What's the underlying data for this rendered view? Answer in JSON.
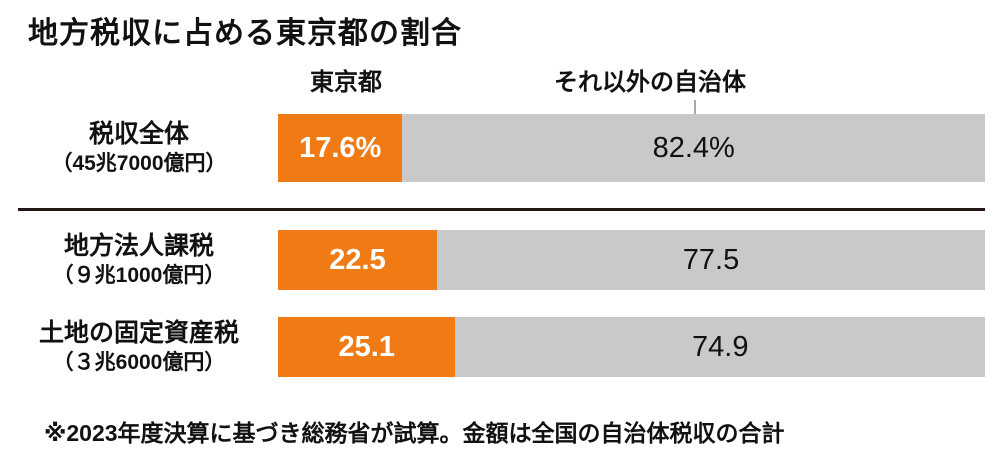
{
  "title": "地方税収に占める東京都の割合",
  "legend": {
    "tokyo": "東京都",
    "other": "それ以外の自治体"
  },
  "colors": {
    "tokyo_bar": "#f07b15",
    "other_bar": "#c9c9c9",
    "text": "#1a1a1a",
    "tokyo_value_text": "#ffffff",
    "divider": "#231815"
  },
  "chart_data": {
    "type": "bar",
    "orientation": "horizontal",
    "stacked": true,
    "unit": "percent",
    "title": "地方税収に占める東京都の割合",
    "categories": [
      "税収全体（45兆7000億円）",
      "地方法人課税（９兆1000億円）",
      "土地の固定資産税（３兆6000億円）"
    ],
    "series": [
      {
        "name": "東京都",
        "values": [
          17.6,
          22.5,
          25.1
        ]
      },
      {
        "name": "それ以外の自治体",
        "values": [
          82.4,
          77.5,
          74.9
        ]
      }
    ],
    "xlim": [
      0,
      100
    ],
    "legend_position": "top",
    "grid": false,
    "rows": [
      {
        "label": "税収全体",
        "sublabel": "（45兆7000億円）",
        "tokyo_pct": 17.6,
        "other_pct": 82.4,
        "tokyo_text": "17.6%",
        "other_text": "82.4%"
      },
      {
        "label": "地方法人課税",
        "sublabel": "（９兆1000億円）",
        "tokyo_pct": 22.5,
        "other_pct": 77.5,
        "tokyo_text": "22.5",
        "other_text": "77.5"
      },
      {
        "label": "土地の固定資産税",
        "sublabel": "（３兆6000億円）",
        "tokyo_pct": 25.1,
        "other_pct": 74.9,
        "tokyo_text": "25.1",
        "other_text": "74.9"
      }
    ],
    "footnote": "※2023年度決算に基づき総務省が試算。金額は全国の自治体税収の合計"
  }
}
